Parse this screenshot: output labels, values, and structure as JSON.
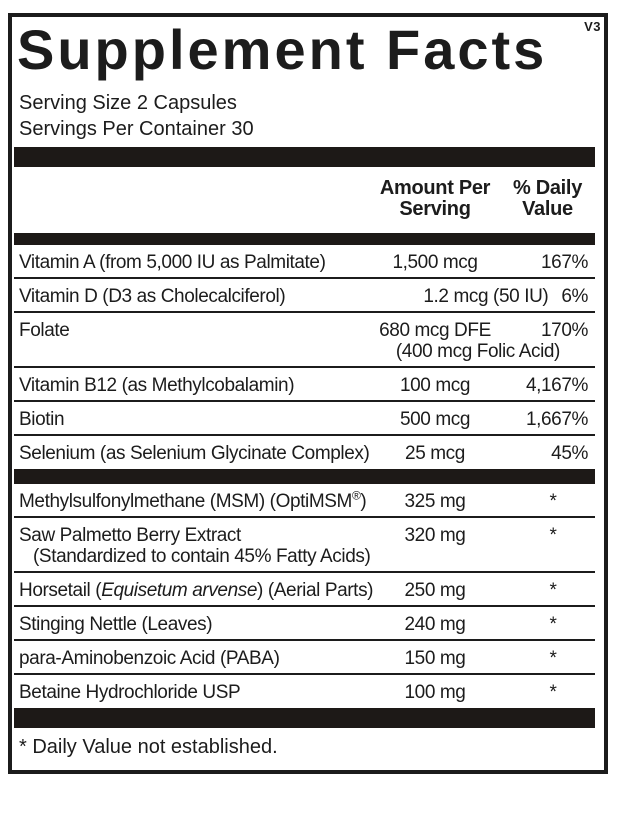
{
  "label": {
    "title": "Supplement Facts",
    "version": "V3",
    "serving_size": "Serving Size 2 Capsules",
    "servings_per_container": "Servings Per Container 30",
    "column_headers": {
      "amount_line1": "Amount Per",
      "amount_line2": "Serving",
      "dv_line1": "% Daily",
      "dv_line2": "Value"
    },
    "footnote": "* Daily Value not established.",
    "colors": {
      "ink": "#1c1c1c",
      "bar": "#1d1917",
      "background": "#ffffff"
    }
  },
  "sections": [
    {
      "rows": [
        {
          "name_parts": [
            {
              "t": "Vitamin A (from 5,000 IU as Palmitate)"
            }
          ],
          "amount": "1,500 mcg",
          "dv": "167%"
        },
        {
          "name_parts": [
            {
              "t": "Vitamin D (D3 as Cholecalciferol)"
            }
          ],
          "layout": "right",
          "amount": "1.2 mcg (50 IU)",
          "dv": "6%"
        },
        {
          "name_parts": [
            {
              "t": "Folate"
            }
          ],
          "amount": "680 mcg DFE",
          "dv": "170%",
          "amount_note": "(400 mcg Folic Acid)"
        },
        {
          "name_parts": [
            {
              "t": "Vitamin B12 (as Methylcobalamin)"
            }
          ],
          "amount": "100 mcg",
          "dv": "4,167%"
        },
        {
          "name_parts": [
            {
              "t": "Biotin"
            }
          ],
          "amount": "500 mcg",
          "dv": "1,667%"
        },
        {
          "name_parts": [
            {
              "t": "Selenium (as Selenium Glycinate Complex)"
            }
          ],
          "amount": "25 mcg",
          "dv": "45%"
        }
      ]
    },
    {
      "rows": [
        {
          "name_parts": [
            {
              "t": "Methylsulfonylmethane (MSM) (OptiMSM"
            },
            {
              "t": "®",
              "s": "sup"
            },
            {
              "t": ")"
            }
          ],
          "amount": "325 mg",
          "dv": "*"
        },
        {
          "name_parts": [
            {
              "t": "Saw Palmetto Berry Extract"
            }
          ],
          "name_note": "(Standardized to contain 45% Fatty Acids)",
          "amount": "320 mg",
          "dv": "*"
        },
        {
          "name_parts": [
            {
              "t": "Horsetail ("
            },
            {
              "t": "Equisetum arvense",
              "s": "i"
            },
            {
              "t": ") (Aerial Parts)"
            }
          ],
          "amount": "250 mg",
          "dv": "*"
        },
        {
          "name_parts": [
            {
              "t": "Stinging Nettle (Leaves)"
            }
          ],
          "amount": "240 mg",
          "dv": "*"
        },
        {
          "name_parts": [
            {
              "t": "para-Aminobenzoic Acid (PABA)"
            }
          ],
          "amount": "150 mg",
          "dv": "*"
        },
        {
          "name_parts": [
            {
              "t": "Betaine Hydrochloride USP"
            }
          ],
          "amount": "100 mg",
          "dv": "*"
        }
      ]
    }
  ]
}
